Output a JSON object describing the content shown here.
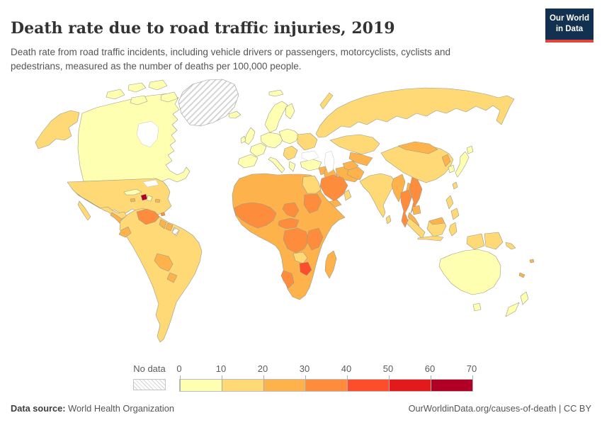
{
  "header": {
    "title": "Death rate due to road traffic injuries, 2019",
    "subtitle": "Death rate from road traffic incidents, including vehicle drivers or passengers, motorcyclists, cyclists and pedestrians, measured as the number of deaths per 100,000 people."
  },
  "logo": {
    "line1": "Our World",
    "line2": "in Data",
    "bg_color": "#12304f",
    "accent_color": "#e0443a"
  },
  "legend": {
    "no_data_label": "No data"
  },
  "chart_data": {
    "type": "choropleth",
    "title": "Death rate due to road traffic injuries, 2019",
    "unit": "deaths per 100,000 people",
    "colorscale": {
      "tick_labels": [
        "0",
        "10",
        "20",
        "30",
        "40",
        "50",
        "60",
        "70"
      ],
      "bin_ranges": [
        "0-10",
        "10-20",
        "20-30",
        "30-40",
        "40-50",
        "50-60",
        "60-70"
      ],
      "colors": [
        "#ffffb2",
        "#fed976",
        "#feb24c",
        "#fd8d3c",
        "#fc4e2a",
        "#e31a1c",
        "#b10026"
      ],
      "no_data_style": "gray-diagonal-hatch"
    },
    "region_bins": {
      "greenland": "no-data",
      "french-guiana": "no-data",
      "canada": 0,
      "canada-arctic-1": 0,
      "canada-arctic-2": 0,
      "canada-arctic-3": 0,
      "canada-arctic-4": 0,
      "canada-arctic-5": 0,
      "iceland": 0,
      "svalbard": 0,
      "uk": 0,
      "ireland": 0,
      "scandinavia": 0,
      "finland": 0,
      "western-europe": 0,
      "france": 0,
      "iberia": 0,
      "italy": 0,
      "central-europe": 0,
      "greece": 0,
      "turkey": 0,
      "japan": 0,
      "hokkaido": 0,
      "south-korea": 0,
      "australia": 0,
      "tasmania": 0,
      "new-zealand-north": 0,
      "new-zealand-south": 0,
      "cuba": 0,
      "dominican-republic": 0,
      "alaska": 1,
      "usa": 1,
      "florida": 1,
      "mexico": 1,
      "baja-california": 1,
      "south-america": 1,
      "russia": 1,
      "novaya-zemlya": 1,
      "kazakhstan": 1,
      "china": 1,
      "taiwan": 1,
      "india": 1,
      "sri-lanka": 1,
      "sumatra": 1,
      "borneo": 1,
      "java": 1,
      "sulawesi": 1,
      "philippines-north": 1,
      "philippines-south": 1,
      "west-new-guinea": 1,
      "papua-new-guinea": 1,
      "solomon-islands": 1,
      "zambia": 1,
      "egypt": 1,
      "oman": 1,
      "ukraine": 1,
      "balkans": 1,
      "central-america": 2,
      "jamaica": 2,
      "puerto-rico": 2,
      "guyana": 2,
      "suriname": 2,
      "ecuador": 2,
      "bolivia": 2,
      "paraguay": 2,
      "central-asia": 2,
      "mongolia": 2,
      "north-korea": 2,
      "pakistan": 2,
      "afghanistan": 2,
      "bangladesh": 2,
      "iran": 2,
      "iraq": 2,
      "syria": 2,
      "yemen": 2,
      "africa": 2,
      "madagascar": 2,
      "myanmar": 2,
      "laos": 2,
      "cambodia": 2,
      "malay-peninsula": 2,
      "malaysia-borneo": 2,
      "fiji": 2,
      "new-caledonia": 2,
      "venezuela": 3,
      "trinidad": 3,
      "west-africa": 3,
      "chad": 3,
      "sudan": 3,
      "cameroon-car": 3,
      "drc": 3,
      "east-africa": 3,
      "namibia": 3,
      "saudi-arabia": 3,
      "thailand": 3,
      "vietnam": 3,
      "zimbabwe": 4,
      "haiti": 6
    }
  },
  "footer": {
    "source_label": "Data source:",
    "source_value": "World Health Organization",
    "credit": "OurWorldinData.org/causes-of-death",
    "separator": " | ",
    "license": "CC BY"
  }
}
